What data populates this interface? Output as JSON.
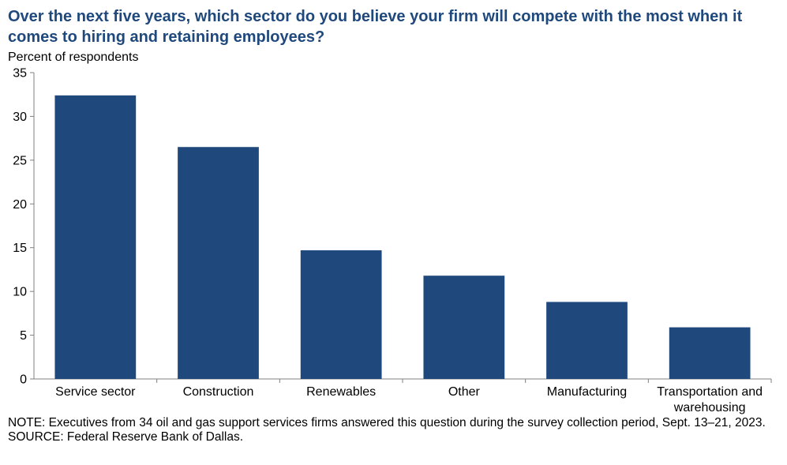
{
  "title": "Over the next five years, which sector do you believe your firm will  compete with the most when it comes to hiring and retaining employees?",
  "colors": {
    "bar": "#1f497d",
    "title": "#1f497d",
    "axis": "#808080"
  },
  "chart_data": {
    "type": "bar",
    "title": "Over the next five years, which sector do you believe your firm will  compete with the most when it comes to hiring and retaining employees?",
    "xlabel": "",
    "ylabel": "Percent of respondents",
    "categories": [
      "Service sector",
      "Construction",
      "Renewables",
      "Other",
      "Manufacturing",
      "Transportation and warehousing"
    ],
    "category_lines": [
      [
        "Service sector"
      ],
      [
        "Construction"
      ],
      [
        "Renewables"
      ],
      [
        "Other"
      ],
      [
        "Manufacturing"
      ],
      [
        "Transportation and",
        "warehousing"
      ]
    ],
    "values": [
      32.4,
      26.5,
      14.7,
      11.8,
      8.8,
      5.9
    ],
    "ylim": [
      0,
      35
    ],
    "yticks": [
      0,
      5,
      10,
      15,
      20,
      25,
      30,
      35
    ],
    "grid": false,
    "legend": "none"
  },
  "note": "NOTE:  Executives  from 34 oil and gas support services firms answered this question during the survey collection period, Sept. 13–21, 2023.",
  "source": "SOURCE:  Federal Reserve Bank of Dallas."
}
